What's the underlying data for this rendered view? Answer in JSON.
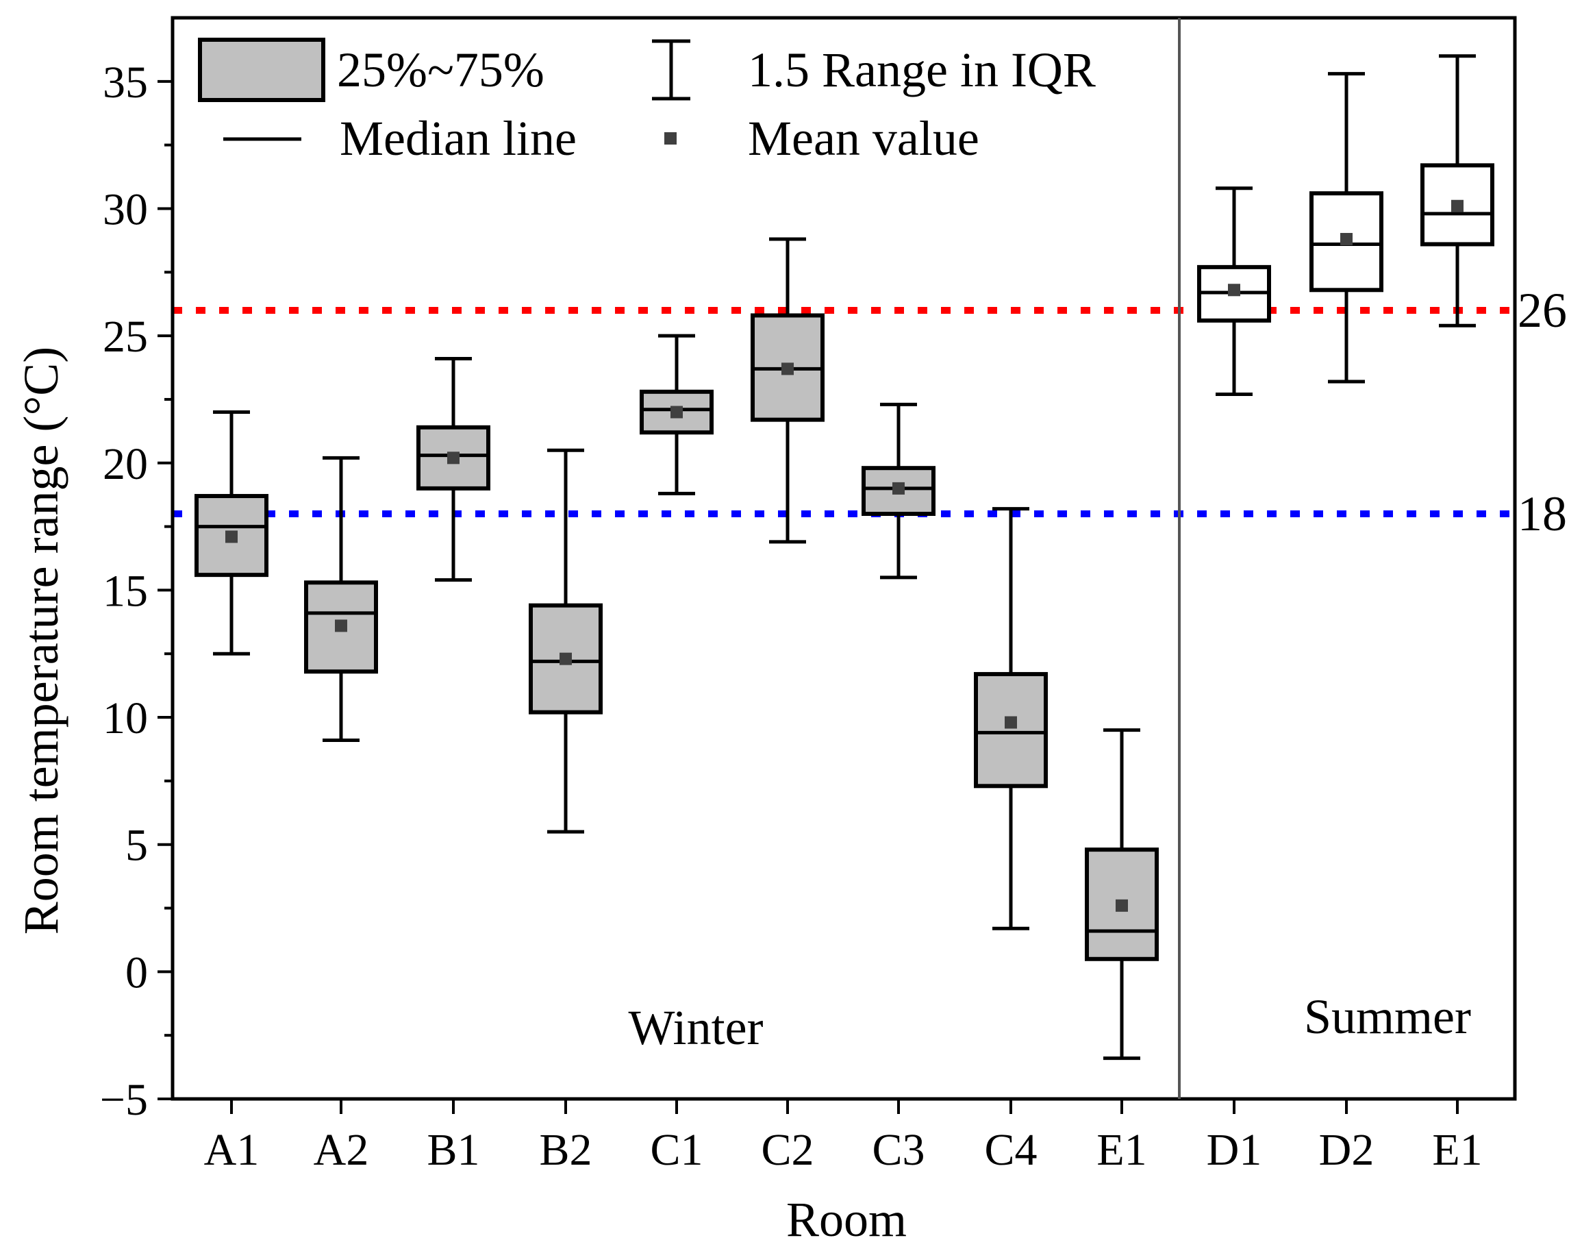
{
  "chart_data": {
    "type": "boxplot",
    "xlabel": "Room",
    "ylabel": "Room temperature range (°C)",
    "ylim": [
      -5,
      37.5
    ],
    "yticks": [
      -5,
      0,
      5,
      10,
      15,
      20,
      25,
      30,
      35
    ],
    "ytick_labels": [
      "−5",
      "0",
      "5",
      "10",
      "15",
      "20",
      "25",
      "30",
      "35"
    ],
    "groups": [
      {
        "name": "Winter",
        "fill": "#c0c0c0",
        "boxes": [
          {
            "label": "A1",
            "whisker_low": 12.5,
            "q1": 15.6,
            "median": 17.5,
            "q3": 18.7,
            "whisker_high": 22.0,
            "mean": 17.1
          },
          {
            "label": "A2",
            "whisker_low": 9.1,
            "q1": 11.8,
            "median": 14.1,
            "q3": 15.3,
            "whisker_high": 20.2,
            "mean": 13.6
          },
          {
            "label": "B1",
            "whisker_low": 15.4,
            "q1": 19.0,
            "median": 20.3,
            "q3": 21.4,
            "whisker_high": 24.1,
            "mean": 20.2
          },
          {
            "label": "B2",
            "whisker_low": 5.5,
            "q1": 10.2,
            "median": 12.2,
            "q3": 14.4,
            "whisker_high": 20.5,
            "mean": 12.3
          },
          {
            "label": "C1",
            "whisker_low": 18.8,
            "q1": 21.2,
            "median": 22.1,
            "q3": 22.8,
            "whisker_high": 25.0,
            "mean": 22.0
          },
          {
            "label": "C2",
            "whisker_low": 16.9,
            "q1": 21.7,
            "median": 23.7,
            "q3": 25.8,
            "whisker_high": 28.8,
            "mean": 23.7
          },
          {
            "label": "C3",
            "whisker_low": 15.5,
            "q1": 18.0,
            "median": 19.0,
            "q3": 19.8,
            "whisker_high": 22.3,
            "mean": 19.0
          },
          {
            "label": "C4",
            "whisker_low": 1.7,
            "q1": 7.3,
            "median": 9.4,
            "q3": 11.7,
            "whisker_high": 18.2,
            "mean": 9.8
          },
          {
            "label": "E1",
            "whisker_low": -3.4,
            "q1": 0.5,
            "median": 1.6,
            "q3": 4.8,
            "whisker_high": 9.5,
            "mean": 2.6
          }
        ]
      },
      {
        "name": "Summer",
        "fill": "#ffffff",
        "boxes": [
          {
            "label": "D1",
            "whisker_low": 22.7,
            "q1": 25.6,
            "median": 26.7,
            "q3": 27.7,
            "whisker_high": 30.8,
            "mean": 26.8
          },
          {
            "label": "D2",
            "whisker_low": 23.2,
            "q1": 26.8,
            "median": 28.6,
            "q3": 30.6,
            "whisker_high": 35.3,
            "mean": 28.8
          },
          {
            "label": "E1",
            "whisker_low": 25.4,
            "q1": 28.6,
            "median": 29.8,
            "q3": 31.7,
            "whisker_high": 36.0,
            "mean": 30.1
          }
        ]
      }
    ],
    "reference_lines": [
      {
        "value": 26,
        "label": "26",
        "color": "#ff0000",
        "style": "dotted"
      },
      {
        "value": 18,
        "label": "18",
        "color": "#0000ff",
        "style": "dotted"
      }
    ],
    "legend": {
      "placement": "top-left",
      "items": [
        {
          "symbol": "box",
          "label": "25%~75%"
        },
        {
          "symbol": "whisker",
          "label": "1.5 Range in IQR"
        },
        {
          "symbol": "line",
          "label": "Median line"
        },
        {
          "symbol": "square",
          "label": "Mean value"
        }
      ]
    },
    "colors": {
      "box_fill": "#c0c0c0",
      "mean_marker": "#404040",
      "divider": "#555555"
    }
  }
}
